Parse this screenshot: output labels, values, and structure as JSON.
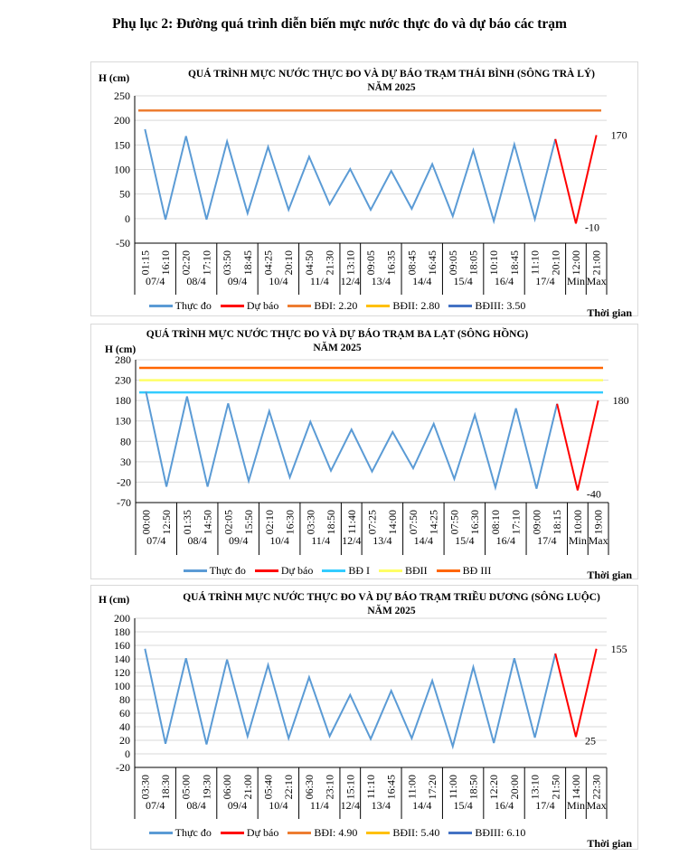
{
  "document_title": "Phụ lục 2: Đường quá trình diễn biến mực nước thực đo và dự báo các trạm",
  "chart_data": [
    {
      "type": "line",
      "title_line1": "QUÁ TRÌNH MỰC NƯỚC THỰC ĐO VÀ DỰ BÁO TRẠM  THÁI BÌNH (SÔNG TRÀ LÝ)",
      "title_line2": "NĂM 2025",
      "ylabel": "H (cm)",
      "xlabel": "Thời gian",
      "ylim": [
        -50,
        250
      ],
      "yticks": [
        250,
        200,
        150,
        100,
        50,
        0,
        -50
      ],
      "grid": true,
      "categories": [
        "01:15",
        "16:10",
        "02:20",
        "17:10",
        "03:50",
        "18:45",
        "04:25",
        "20:10",
        "04:50",
        "21:30",
        "13:10",
        "09:05",
        "16:35",
        "08:45",
        "16:45",
        "09:05",
        "18:05",
        "10:10",
        "18:45",
        "11:10",
        "20:10",
        "12:00",
        "21:00"
      ],
      "groups": [
        {
          "label": "07/4",
          "span": 2
        },
        {
          "label": "08/4",
          "span": 2
        },
        {
          "label": "09/4",
          "span": 2
        },
        {
          "label": "10/4",
          "span": 2
        },
        {
          "label": "11/4",
          "span": 2
        },
        {
          "label": "12/4",
          "span": 1
        },
        {
          "label": "13/4",
          "span": 2
        },
        {
          "label": "14/4",
          "span": 2
        },
        {
          "label": "15/4",
          "span": 2
        },
        {
          "label": "16/4",
          "span": 2
        },
        {
          "label": "17/4",
          "span": 2
        },
        {
          "label": "Min",
          "span": 1
        },
        {
          "label": "Max",
          "span": 1
        }
      ],
      "observed": {
        "name": "Thực đo",
        "color": "#5b9bd5",
        "values": [
          182,
          -2,
          168,
          -2,
          157,
          11,
          146,
          18,
          126,
          29,
          101,
          18,
          97,
          20,
          111,
          5,
          139,
          -5,
          151,
          -1,
          162
        ]
      },
      "forecast": {
        "name": "Dự báo",
        "color": "#ff0000",
        "values": [
          162,
          -10,
          170
        ]
      },
      "forecast_labels": [
        "-10",
        "170"
      ],
      "levels": [
        {
          "name": "BĐI: 2.20",
          "color": "#ed7d31",
          "value": 220,
          "drawn": true
        },
        {
          "name": "BĐII: 2.80",
          "color": "#ffc000",
          "value": null,
          "drawn": false
        },
        {
          "name": "BĐIII: 3.50",
          "color": "#4472c4",
          "value": null,
          "drawn": false
        }
      ]
    },
    {
      "type": "line",
      "title_line1": "QUÁ TRÌNH  MỰC NƯỚC THỰC ĐO VÀ  DỰ BÁO TRẠM BA LẠT  (SÔNG HỒNG)",
      "title_line2": "NĂM 2025",
      "ylabel": "H (cm)",
      "xlabel": "Thời gian",
      "ylim": [
        -70,
        280
      ],
      "yticks": [
        280,
        230,
        180,
        130,
        80,
        30,
        -20,
        -70
      ],
      "grid": true,
      "categories": [
        "00:00",
        "12:50",
        "01:35",
        "14:50",
        "02:05",
        "15:50",
        "02:10",
        "16:30",
        "03:30",
        "18:50",
        "11:40",
        "07:25",
        "14:00",
        "07:50",
        "14:25",
        "07:50",
        "16:30",
        "08:10",
        "17:10",
        "09:00",
        "18:15",
        "10:00",
        "19:00"
      ],
      "groups": [
        {
          "label": "07/4",
          "span": 2
        },
        {
          "label": "08/4",
          "span": 2
        },
        {
          "label": "09/4",
          "span": 2
        },
        {
          "label": "10/4",
          "span": 2
        },
        {
          "label": "11/4",
          "span": 2
        },
        {
          "label": "12/4",
          "span": 1
        },
        {
          "label": "13/4",
          "span": 2
        },
        {
          "label": "14/4",
          "span": 2
        },
        {
          "label": "15/4",
          "span": 2
        },
        {
          "label": "16/4",
          "span": 2
        },
        {
          "label": "17/4",
          "span": 2
        },
        {
          "label": "Min",
          "span": 1
        },
        {
          "label": "Max",
          "span": 1
        }
      ],
      "observed": {
        "name": "Thực đo",
        "color": "#5b9bd5",
        "values": [
          202,
          -31,
          190,
          -31,
          173,
          -17,
          154,
          -8,
          128,
          8,
          109,
          6,
          103,
          14,
          123,
          -12,
          145,
          -33,
          161,
          -36,
          172
        ]
      },
      "forecast": {
        "name": "Dự báo",
        "color": "#ff0000",
        "values": [
          172,
          -40,
          180
        ]
      },
      "forecast_labels": [
        "-40",
        "180"
      ],
      "levels": [
        {
          "name": "BĐ I",
          "color": "#33ccff",
          "value": 200,
          "drawn": true
        },
        {
          "name": "BĐII",
          "color": "#ffff66",
          "value": 230,
          "drawn": true
        },
        {
          "name": "BĐ III",
          "color": "#ff6600",
          "value": 260,
          "drawn": true
        }
      ]
    },
    {
      "type": "line",
      "title_line1": "QUÁ TRÌNH MỰC NƯỚC THỰC ĐO VÀ DỰ BÁO TRẠM TRIỀU  DƯƠNG  (SÔNG LUỘC)",
      "title_line2": "NĂM 2025",
      "ylabel": "H (cm)",
      "xlabel": "Thời gian",
      "ylim": [
        -20,
        200
      ],
      "yticks": [
        200,
        180,
        160,
        140,
        120,
        100,
        80,
        60,
        40,
        20,
        0,
        -20
      ],
      "grid": true,
      "categories": [
        "03:30",
        "18:30",
        "05:00",
        "19:30",
        "06:00",
        "21:00",
        "05:40",
        "22:10",
        "06:30",
        "23:10",
        "15:10",
        "11:10",
        "16:45",
        "11:00",
        "17:20",
        "11:00",
        "18:50",
        "12:20",
        "20:00",
        "13:10",
        "21:50",
        "14:00",
        "22:30"
      ],
      "groups": [
        {
          "label": "07/4",
          "span": 2
        },
        {
          "label": "08/4",
          "span": 2
        },
        {
          "label": "09/4",
          "span": 2
        },
        {
          "label": "10/4",
          "span": 2
        },
        {
          "label": "11/4",
          "span": 2
        },
        {
          "label": "12/4",
          "span": 1
        },
        {
          "label": "13/4",
          "span": 2
        },
        {
          "label": "14/4",
          "span": 2
        },
        {
          "label": "15/4",
          "span": 2
        },
        {
          "label": "16/4",
          "span": 2
        },
        {
          "label": "17/4",
          "span": 2
        },
        {
          "label": "Min",
          "span": 1
        },
        {
          "label": "Max",
          "span": 1
        }
      ],
      "observed": {
        "name": "Thực đo",
        "color": "#5b9bd5",
        "values": [
          155,
          15,
          141,
          14,
          139,
          26,
          131,
          23,
          113,
          26,
          87,
          22,
          93,
          23,
          108,
          11,
          128,
          16,
          141,
          24,
          148
        ]
      },
      "forecast": {
        "name": "Dự báo",
        "color": "#ff0000",
        "values": [
          148,
          25,
          155
        ]
      },
      "forecast_labels": [
        "25",
        "155"
      ],
      "levels": [
        {
          "name": "BĐI: 4.90",
          "color": "#ed7d31",
          "value": null,
          "drawn": false
        },
        {
          "name": "BĐII: 5.40",
          "color": "#ffc000",
          "value": null,
          "drawn": false
        },
        {
          "name": "BĐIII: 6.10",
          "color": "#4472c4",
          "value": null,
          "drawn": false
        }
      ]
    }
  ]
}
